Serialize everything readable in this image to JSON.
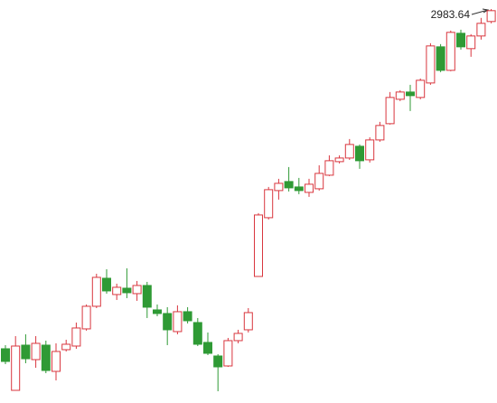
{
  "chart_data": {
    "type": "candlestick",
    "open": [
      2232,
      2140,
      2240,
      2208,
      2240,
      2182,
      2230,
      2238,
      2276,
      2326,
      2388,
      2352,
      2366,
      2354,
      2372,
      2318,
      2310,
      2270,
      2314,
      2290,
      2246,
      2216,
      2194,
      2250,
      2274,
      2392,
      2522,
      2582,
      2602,
      2590,
      2578,
      2586,
      2616,
      2646,
      2654,
      2680,
      2650,
      2694,
      2730,
      2784,
      2800,
      2788,
      2820,
      2900,
      2848,
      2930,
      2896,
      2924,
      2956
    ],
    "high": [
      2240,
      2260,
      2264,
      2260,
      2250,
      2244,
      2252,
      2290,
      2330,
      2398,
      2408,
      2376,
      2410,
      2382,
      2380,
      2330,
      2324,
      2328,
      2324,
      2300,
      2268,
      2220,
      2256,
      2274,
      2322,
      2532,
      2590,
      2608,
      2634,
      2610,
      2608,
      2638,
      2660,
      2660,
      2696,
      2684,
      2700,
      2734,
      2800,
      2804,
      2816,
      2830,
      2908,
      2906,
      2936,
      2938,
      2928,
      2964,
      2983.64
    ],
    "low": [
      2198,
      2140,
      2200,
      2190,
      2178,
      2162,
      2226,
      2232,
      2272,
      2322,
      2354,
      2340,
      2344,
      2338,
      2300,
      2304,
      2240,
      2264,
      2288,
      2238,
      2218,
      2138,
      2192,
      2244,
      2268,
      2392,
      2518,
      2562,
      2580,
      2574,
      2568,
      2582,
      2614,
      2642,
      2650,
      2630,
      2644,
      2690,
      2728,
      2780,
      2758,
      2784,
      2816,
      2844,
      2846,
      2894,
      2878,
      2916,
      2952
    ],
    "close": [
      2204,
      2238,
      2210,
      2244,
      2184,
      2226,
      2242,
      2278,
      2326,
      2390,
      2360,
      2368,
      2356,
      2372,
      2324,
      2310,
      2274,
      2314,
      2294,
      2242,
      2222,
      2192,
      2250,
      2266,
      2312,
      2528,
      2584,
      2598,
      2588,
      2582,
      2596,
      2620,
      2648,
      2654,
      2684,
      2648,
      2694,
      2726,
      2788,
      2800,
      2792,
      2826,
      2902,
      2848,
      2932,
      2900,
      2924,
      2952,
      2980
    ],
    "up_color": "#d9363e",
    "down_color": "#2f9a35"
  }
}
